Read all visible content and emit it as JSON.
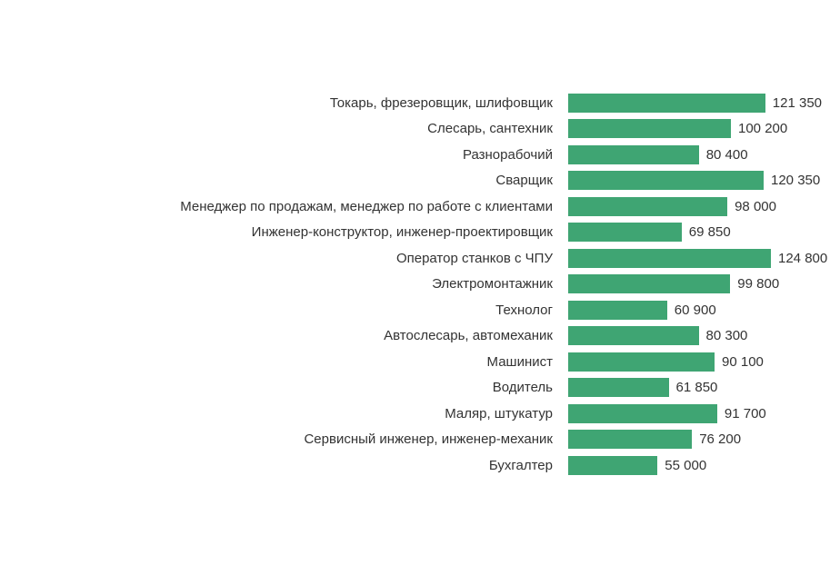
{
  "chart_data": {
    "type": "bar",
    "orientation": "horizontal",
    "title": "",
    "xlabel": "",
    "ylabel": "",
    "grid": false,
    "axes_visible": false,
    "bar_color": "#3fa573",
    "text_color": "#333333",
    "value_range": [
      0,
      124800
    ],
    "categories": [
      "Токарь, фрезеровщик, шлифовщик",
      "Слесарь, сантехник",
      "Разнорабочий",
      "Сварщик",
      "Менеджер по продажам, менеджер по работе с клиентами",
      "Инженер-конструктор, инженер-проектировщик",
      "Оператор станков с ЧПУ",
      "Электромонтажник",
      "Технолог",
      "Автослесарь, автомеханик",
      "Машинист",
      "Водитель",
      "Маляр, штукатур",
      "Сервисный инженер, инженер-механик",
      "Бухгалтер"
    ],
    "values": [
      121350,
      100200,
      80400,
      120350,
      98000,
      69850,
      124800,
      99800,
      60900,
      80300,
      90100,
      61850,
      91700,
      76200,
      55000
    ],
    "value_labels": [
      "121 350",
      "100 200",
      "80 400",
      "120 350",
      "98 000",
      "69 850",
      "124 800",
      "99 800",
      "60 900",
      "80 300",
      "90 100",
      "61 850",
      "91 700",
      "76 200",
      "55 000"
    ]
  }
}
